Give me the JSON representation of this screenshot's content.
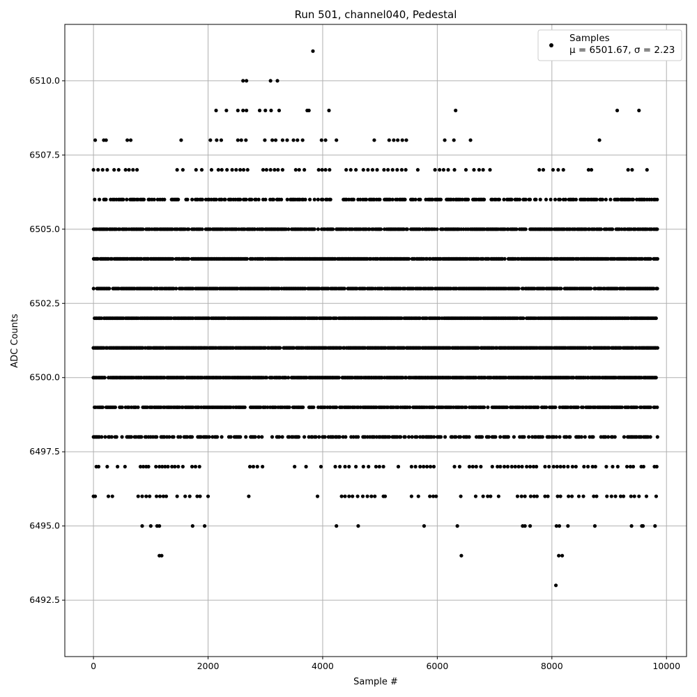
{
  "chart_data": {
    "type": "scatter",
    "title": "Run 501, channel040, Pedestal",
    "xlabel": "Sample #",
    "ylabel": "ADC Counts",
    "xlim": [
      -500,
      10350
    ],
    "ylim": [
      6490.6,
      6511.9
    ],
    "x_ticks": [
      0,
      2000,
      4000,
      6000,
      8000,
      10000
    ],
    "y_ticks": [
      6492.5,
      6495.0,
      6497.5,
      6500.0,
      6502.5,
      6505.0,
      6507.5,
      6510.0
    ],
    "x_tick_labels": [
      "0",
      "2000",
      "4000",
      "6000",
      "8000",
      "10000"
    ],
    "y_tick_labels": [
      "6492.5",
      "6495.0",
      "6497.5",
      "6500.0",
      "6502.5",
      "6505.0",
      "6507.5",
      "6510.0"
    ],
    "grid": true,
    "legend_position": "top-right",
    "series": [
      {
        "name": "Samples",
        "stats_label": "μ = 6501.67, σ = 2.23",
        "color": "#000000",
        "points": [
          [
            3830,
            6511
          ],
          [
            2610,
            6510
          ],
          [
            2670,
            6510
          ],
          [
            3090,
            6510
          ],
          [
            3210,
            6510
          ],
          [
            2140,
            6509
          ],
          [
            2320,
            6509
          ],
          [
            2520,
            6509
          ],
          [
            2610,
            6509
          ],
          [
            2670,
            6509
          ],
          [
            2900,
            6509
          ],
          [
            3000,
            6509
          ],
          [
            3100,
            6509
          ],
          [
            3240,
            6509
          ],
          [
            3730,
            6509
          ],
          [
            3760,
            6509
          ],
          [
            4110,
            6509
          ],
          [
            6320,
            6509
          ],
          [
            9140,
            6509
          ],
          [
            9520,
            6509
          ],
          [
            8830,
            6508
          ],
          [
            4900,
            6508
          ],
          [
            4240,
            6508
          ],
          [
            1530,
            6508
          ],
          [
            6580,
            6508
          ],
          [
            6290,
            6508
          ],
          [
            6130,
            6508
          ],
          [
            6420,
            6494
          ],
          [
            1150,
            6494
          ],
          [
            1190,
            6494
          ],
          [
            8120,
            6494
          ],
          [
            8180,
            6494
          ],
          [
            8070,
            6493
          ],
          [
            850,
            6495
          ],
          [
            1000,
            6495
          ],
          [
            1110,
            6495
          ],
          [
            1150,
            6495
          ],
          [
            1730,
            6495
          ],
          [
            1940,
            6495
          ],
          [
            4240,
            6495
          ],
          [
            4620,
            6495
          ],
          [
            5770,
            6495
          ],
          [
            6350,
            6495
          ],
          [
            7490,
            6495
          ],
          [
            7530,
            6495
          ],
          [
            7620,
            6495
          ],
          [
            8080,
            6495
          ],
          [
            8130,
            6495
          ],
          [
            8280,
            6495
          ],
          [
            8750,
            6495
          ],
          [
            9390,
            6495
          ],
          [
            9570,
            6495
          ],
          [
            9590,
            6495
          ],
          [
            9800,
            6495
          ],
          [
            0,
            6496
          ],
          [
            30,
            6496
          ],
          [
            260,
            6496
          ],
          [
            330,
            6496
          ],
          [
            780,
            6496
          ],
          [
            850,
            6496
          ],
          [
            920,
            6496
          ],
          [
            980,
            6496
          ],
          [
            1100,
            6496
          ],
          [
            1160,
            6496
          ],
          [
            1220,
            6496
          ],
          [
            1270,
            6496
          ],
          [
            1460,
            6496
          ],
          [
            1600,
            6496
          ],
          [
            1680,
            6496
          ],
          [
            1810,
            6496
          ],
          [
            1860,
            6496
          ],
          [
            2000,
            6496
          ],
          [
            2710,
            6496
          ],
          [
            3910,
            6496
          ],
          [
            4330,
            6496
          ],
          [
            4390,
            6496
          ],
          [
            4460,
            6496
          ],
          [
            4520,
            6496
          ],
          [
            4610,
            6496
          ],
          [
            4700,
            6496
          ],
          [
            4780,
            6496
          ],
          [
            4850,
            6496
          ],
          [
            4910,
            6496
          ],
          [
            5060,
            6496
          ],
          [
            5090,
            6496
          ],
          [
            5550,
            6496
          ],
          [
            5670,
            6496
          ],
          [
            5870,
            6496
          ],
          [
            5930,
            6496
          ],
          [
            5980,
            6496
          ],
          [
            6410,
            6496
          ],
          [
            6670,
            6496
          ],
          [
            6800,
            6496
          ],
          [
            6880,
            6496
          ],
          [
            6930,
            6496
          ],
          [
            7070,
            6496
          ],
          [
            7400,
            6496
          ],
          [
            7470,
            6496
          ],
          [
            7530,
            6496
          ],
          [
            7630,
            6496
          ],
          [
            7690,
            6496
          ],
          [
            7740,
            6496
          ],
          [
            7880,
            6496
          ],
          [
            7930,
            6496
          ],
          [
            8100,
            6496
          ],
          [
            8150,
            6496
          ],
          [
            8290,
            6496
          ],
          [
            8350,
            6496
          ],
          [
            8470,
            6496
          ],
          [
            8550,
            6496
          ],
          [
            8730,
            6496
          ],
          [
            8780,
            6496
          ],
          [
            8960,
            6496
          ],
          [
            9040,
            6496
          ],
          [
            9110,
            6496
          ],
          [
            9200,
            6496
          ],
          [
            9250,
            6496
          ],
          [
            9380,
            6496
          ],
          [
            9440,
            6496
          ],
          [
            9520,
            6496
          ],
          [
            9650,
            6496
          ],
          [
            9820,
            6496
          ]
        ],
        "band_samples": [
          {
            "y": 6508,
            "x": [
              30,
              180,
              220,
              590,
              650,
              2040,
              2150,
              2230,
              2520,
              2580,
              2660,
              2990,
              3120,
              3180,
              3300,
              3380,
              3490,
              3560,
              3650,
              3980,
              4050,
              5160,
              5240,
              5310,
              5390,
              5460
            ]
          },
          {
            "y": 6507,
            "x": [
              0,
              80,
              160,
              240,
              360,
              440,
              560,
              620,
              690,
              760,
              1460,
              1560,
              1790,
              1890,
              2060,
              2180,
              2240,
              2330,
              2420,
              2490,
              2560,
              2620,
              2690,
              2960,
              3020,
              3090,
              3160,
              3220,
              3300,
              3530,
              3590,
              3680,
              3930,
              3990,
              4050,
              4120,
              4410,
              4490,
              4580,
              4710,
              4790,
              4870,
              4950,
              5070,
              5140,
              5220,
              5300,
              5380,
              5450,
              5660,
              5960,
              6040,
              6110,
              6190,
              6300,
              6500,
              6640,
              6730,
              6800,
              6920,
              7780,
              7850,
              8020,
              8110,
              8200,
              8640,
              8690,
              9330,
              9400,
              9660
            ]
          },
          {
            "y": 6506,
            "x": 0.55
          },
          {
            "y": 6505,
            "x": 0.8
          },
          {
            "y": 6504,
            "x": 0.88
          },
          {
            "y": 6503,
            "x": 0.9
          },
          {
            "y": 6502,
            "x": 0.95
          },
          {
            "y": 6501,
            "x": 0.93
          },
          {
            "y": 6500,
            "x": 0.9
          },
          {
            "y": 6499,
            "x": 0.72
          },
          {
            "y": 6498,
            "x": 0.55
          },
          {
            "y": 6497,
            "x": [
              50,
              90,
              240,
              420,
              550,
              820,
              870,
              920,
              960,
              1090,
              1150,
              1200,
              1250,
              1300,
              1370,
              1420,
              1480,
              1560,
              1720,
              1780,
              1850,
              2730,
              2790,
              2860,
              2950,
              3510,
              3710,
              3970,
              4220,
              4300,
              4390,
              4460,
              4580,
              4710,
              4800,
              4930,
              4990,
              5060,
              5320,
              5550,
              5620,
              5700,
              5760,
              5820,
              5880,
              5940,
              6300,
              6390,
              6560,
              6620,
              6680,
              6760,
              6960,
              7050,
              7100,
              7170,
              7230,
              7300,
              7360,
              7420,
              7480,
              7560,
              7620,
              7680,
              7730,
              7880,
              7950,
              8030,
              8090,
              8150,
              8210,
              8280,
              8360,
              8420,
              8560,
              8630,
              8710,
              8760,
              8950,
              9060,
              9150,
              9310,
              9370,
              9420,
              9560,
              9600,
              9790,
              9830
            ]
          }
        ]
      }
    ]
  }
}
